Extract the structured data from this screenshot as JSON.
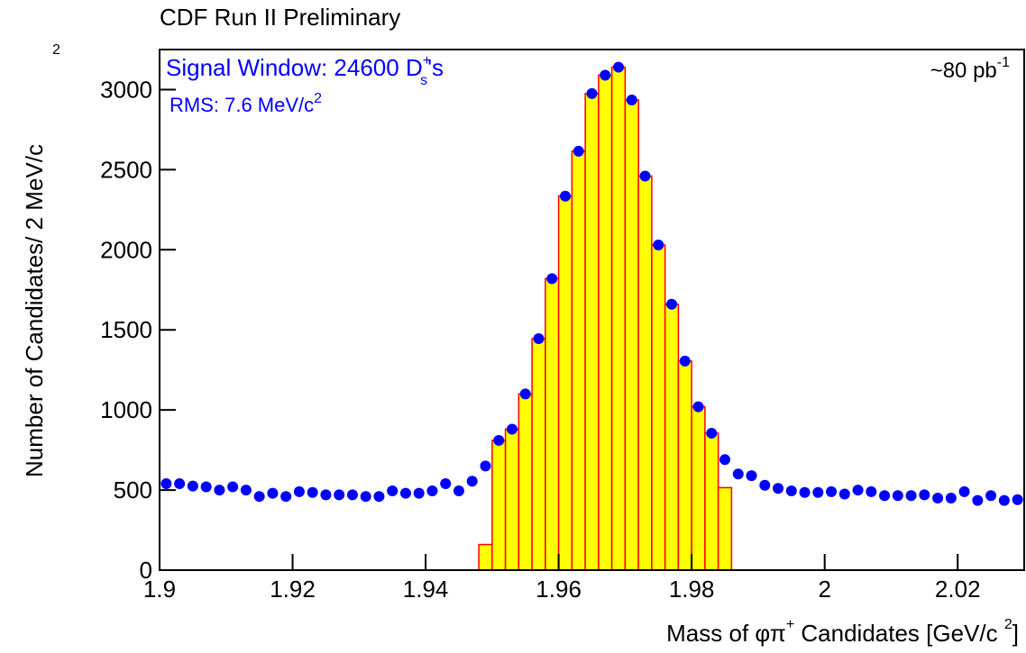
{
  "chart_data": {
    "type": "histogram",
    "title": "CDF Run II Preliminary",
    "y_label": {
      "text": "Number of Candidates/ 2 MeV/c",
      "sup": "2"
    },
    "x_label": {
      "text": "Mass of  φπ",
      "sup": "+",
      "middle": " Candidates [GeV/c ",
      "sup2": "2",
      "end": "]"
    },
    "annotations": {
      "signal": {
        "text": "Signal Window:   24600 D",
        "sup": "+",
        "sub": "s",
        "suffix": "'s"
      },
      "rms": {
        "text": "RMS: 7.6 MeV/c",
        "sup": "2"
      },
      "lumi": {
        "text": "~80 pb",
        "sup": "-1"
      }
    },
    "xlim": [
      1.9,
      2.03
    ],
    "ylim": [
      0,
      3250
    ],
    "xticks": [
      1.9,
      1.92,
      1.94,
      1.96,
      1.98,
      2,
      2.02
    ],
    "yticks": [
      0,
      500,
      1000,
      1500,
      2000,
      2500,
      3000
    ],
    "bins": [
      1.948,
      1.95,
      1.952,
      1.954,
      1.956,
      1.958,
      1.96,
      1.962,
      1.964,
      1.966,
      1.968,
      1.97,
      1.972,
      1.974,
      1.976,
      1.978,
      1.98,
      1.982,
      1.984,
      1.986
    ],
    "counts": [
      160,
      810,
      880,
      1100,
      1445,
      1820,
      2335,
      2615,
      2975,
      3090,
      3140,
      2935,
      2460,
      2030,
      1660,
      1305,
      1020,
      855,
      515
    ],
    "fill_color": "#ffff00",
    "edge_color": "#ff0000",
    "points": {
      "color": "#0000ff",
      "x": [
        1.901,
        1.903,
        1.905,
        1.907,
        1.909,
        1.911,
        1.913,
        1.915,
        1.917,
        1.919,
        1.921,
        1.923,
        1.925,
        1.927,
        1.929,
        1.931,
        1.933,
        1.935,
        1.937,
        1.939,
        1.941,
        1.943,
        1.945,
        1.947,
        1.949,
        1.951,
        1.953,
        1.955,
        1.957,
        1.959,
        1.961,
        1.963,
        1.965,
        1.967,
        1.969,
        1.971,
        1.973,
        1.975,
        1.977,
        1.979,
        1.981,
        1.983,
        1.985,
        1.987,
        1.989,
        1.991,
        1.993,
        1.995,
        1.997,
        1.999,
        2.001,
        2.003,
        2.005,
        2.007,
        2.009,
        2.011,
        2.013,
        2.015,
        2.017,
        2.019,
        2.021,
        2.023,
        2.025,
        2.027,
        2.029
      ],
      "values": [
        540,
        540,
        525,
        520,
        500,
        520,
        500,
        460,
        480,
        460,
        490,
        485,
        470,
        470,
        470,
        460,
        460,
        495,
        480,
        480,
        495,
        540,
        495,
        555,
        650,
        810,
        880,
        1100,
        1445,
        1820,
        2335,
        2615,
        2975,
        3090,
        3140,
        2935,
        2460,
        2030,
        1660,
        1305,
        1020,
        855,
        690,
        600,
        590,
        530,
        510,
        495,
        485,
        485,
        490,
        475,
        500,
        490,
        465,
        465,
        465,
        470,
        450,
        450,
        490,
        435,
        465,
        435,
        440
      ]
    }
  }
}
